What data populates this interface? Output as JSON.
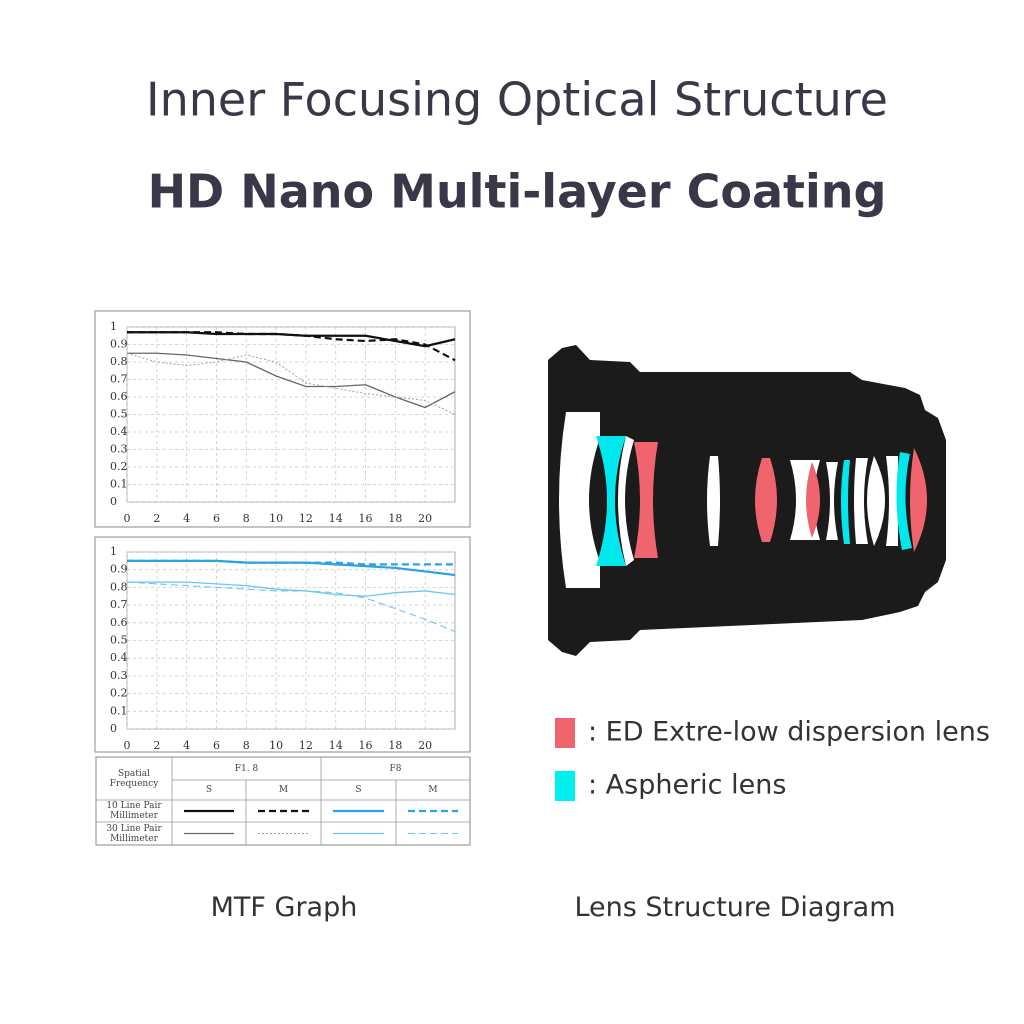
{
  "header": {
    "title": "Inner Focusing Optical Structure",
    "subtitle": "HD Nano Multi-layer Coating"
  },
  "chart_data": [
    {
      "type": "line",
      "x": [
        0,
        2,
        4,
        6,
        8,
        10,
        12,
        14,
        16,
        18,
        20,
        22
      ],
      "xlim": [
        0,
        22
      ],
      "xticks": [
        0,
        2,
        4,
        6,
        8,
        10,
        12,
        14,
        16,
        18,
        20
      ],
      "ylim": [
        0,
        1
      ],
      "yticks": [
        0,
        0.1,
        0.2,
        0.3,
        0.4,
        0.5,
        0.6,
        0.7,
        0.8,
        0.9,
        1
      ],
      "grid": true,
      "series": [
        {
          "color": "#111111",
          "style": "solid",
          "width": 2.2,
          "values": [
            0.97,
            0.97,
            0.97,
            0.96,
            0.96,
            0.96,
            0.95,
            0.95,
            0.95,
            0.92,
            0.89,
            0.93
          ]
        },
        {
          "color": "#111111",
          "style": "dashed",
          "width": 2.2,
          "values": [
            0.97,
            0.97,
            0.97,
            0.97,
            0.96,
            0.96,
            0.95,
            0.93,
            0.92,
            0.93,
            0.9,
            0.81
          ]
        },
        {
          "color": "#666666",
          "style": "solid",
          "width": 1.3,
          "values": [
            0.85,
            0.85,
            0.84,
            0.82,
            0.8,
            0.72,
            0.66,
            0.66,
            0.67,
            0.6,
            0.54,
            0.63
          ]
        },
        {
          "color": "#a0a0a0",
          "style": "dotted",
          "width": 1,
          "values": [
            0.85,
            0.8,
            0.78,
            0.8,
            0.84,
            0.8,
            0.68,
            0.65,
            0.62,
            0.6,
            0.58,
            0.5
          ]
        }
      ]
    },
    {
      "type": "line",
      "x": [
        0,
        2,
        4,
        6,
        8,
        10,
        12,
        14,
        16,
        18,
        20,
        22
      ],
      "xlim": [
        0,
        22
      ],
      "xticks": [
        0,
        2,
        4,
        6,
        8,
        10,
        12,
        14,
        16,
        18,
        20
      ],
      "ylim": [
        0,
        1
      ],
      "yticks": [
        0,
        0.1,
        0.2,
        0.3,
        0.4,
        0.5,
        0.6,
        0.7,
        0.8,
        0.9,
        1
      ],
      "grid": true,
      "series": [
        {
          "color": "#2aa3e0",
          "style": "solid",
          "width": 2.2,
          "values": [
            0.95,
            0.95,
            0.95,
            0.95,
            0.94,
            0.94,
            0.94,
            0.93,
            0.92,
            0.91,
            0.89,
            0.87
          ]
        },
        {
          "color": "#2aa3e0",
          "style": "dashed",
          "width": 2.2,
          "values": [
            0.95,
            0.95,
            0.95,
            0.95,
            0.94,
            0.94,
            0.94,
            0.94,
            0.93,
            0.93,
            0.93,
            0.93
          ]
        },
        {
          "color": "#6cc6ef",
          "style": "solid",
          "width": 1.3,
          "values": [
            0.83,
            0.83,
            0.83,
            0.82,
            0.81,
            0.79,
            0.78,
            0.76,
            0.75,
            0.77,
            0.78,
            0.76
          ]
        },
        {
          "color": "#6cc6ef",
          "style": "dashed",
          "width": 1.1,
          "values": [
            0.83,
            0.82,
            0.81,
            0.8,
            0.79,
            0.78,
            0.78,
            0.77,
            0.74,
            0.68,
            0.62,
            0.55
          ]
        }
      ]
    }
  ],
  "mtf_table": {
    "header": "Spatial\nFrequency",
    "apertures": [
      "F1. 8",
      "F8"
    ],
    "modes": [
      "S",
      "M",
      "S",
      "M"
    ],
    "rows": [
      "10 Line Pair\nMillimeter",
      "30 Line Pair\nMillimeter"
    ]
  },
  "lens_legend": [
    {
      "color": "#f0646e",
      "label": ": ED Extre-low dispersion lens"
    },
    {
      "color": "#00f0f0",
      "label": ": Aspheric lens"
    }
  ],
  "captions": {
    "mtf": "MTF Graph",
    "lens": "Lens Structure Diagram"
  }
}
